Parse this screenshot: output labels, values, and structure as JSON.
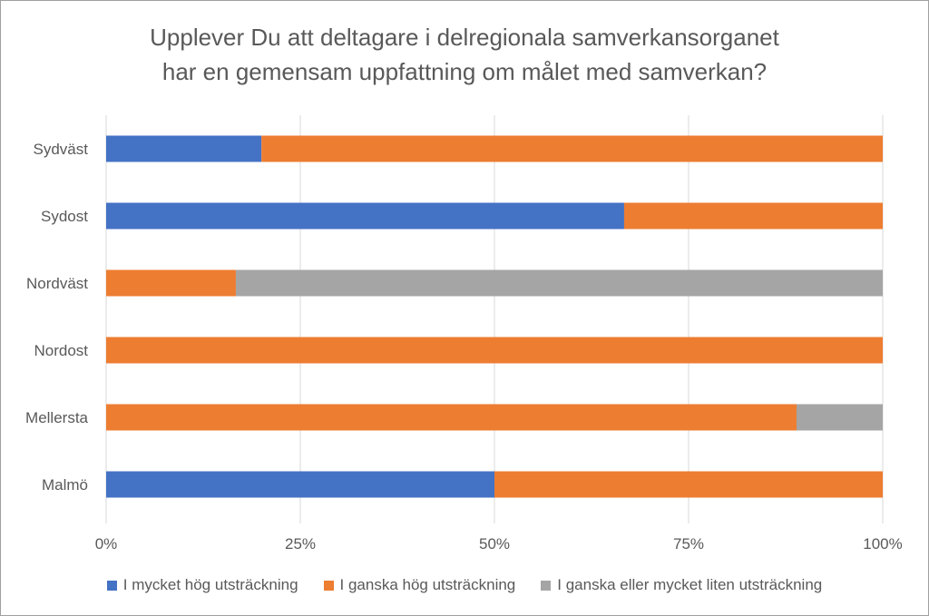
{
  "chart_data": {
    "type": "bar",
    "orientation": "horizontal",
    "stacked": true,
    "title_lines": [
      "Upplever Du att deltagare i delregionala samverkansorganet",
      "har en gemensam uppfattning om målet med samverkan?"
    ],
    "categories": [
      "Sydväst",
      "Sydost",
      "Nordväst",
      "Nordost",
      "Mellersta",
      "Malmö"
    ],
    "series": [
      {
        "name": "I mycket hög utsträckning",
        "color": "#4472C4",
        "values": [
          0.2,
          0.667,
          0,
          0,
          0,
          0.5
        ]
      },
      {
        "name": "I ganska hög utsträckning",
        "color": "#ED7D31",
        "values": [
          0.8,
          0.333,
          0.167,
          1.0,
          0.889,
          0.5
        ]
      },
      {
        "name": "I ganska eller mycket liten utsträckning",
        "color": "#A5A5A5",
        "values": [
          0,
          0,
          0.833,
          0,
          0.111,
          0
        ]
      }
    ],
    "x_ticks": [
      "0%",
      "25%",
      "50%",
      "75%",
      "100%"
    ],
    "xlim": [
      0,
      1
    ],
    "grid": true,
    "legend_position": "bottom"
  }
}
